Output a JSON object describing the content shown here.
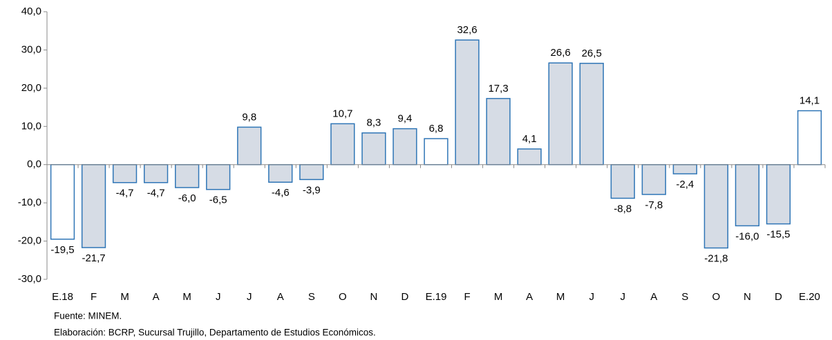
{
  "chart_data": {
    "type": "bar",
    "categories": [
      "E.18",
      "F",
      "M",
      "A",
      "M",
      "J",
      "J",
      "A",
      "S",
      "O",
      "N",
      "D",
      "E.19",
      "F",
      "M",
      "A",
      "M",
      "J",
      "J",
      "A",
      "S",
      "O",
      "N",
      "D",
      "E.20"
    ],
    "values": [
      -19.5,
      -21.7,
      -4.7,
      -4.7,
      -6.0,
      -6.5,
      9.8,
      -4.6,
      -3.9,
      10.7,
      8.3,
      9.4,
      6.8,
      32.6,
      17.3,
      4.1,
      26.6,
      26.5,
      -8.8,
      -7.8,
      -2.4,
      -21.8,
      -16.0,
      -15.5,
      14.1
    ],
    "value_labels": [
      "-19,5",
      "-21,7",
      "-4,7",
      "-4,7",
      "-6,0",
      "-6,5",
      "9,8",
      "-4,6",
      "-3,9",
      "10,7",
      "8,3",
      "9,4",
      "6,8",
      "32,6",
      "17,3",
      "4,1",
      "26,6",
      "26,5",
      "-8,8",
      "-7,8",
      "-2,4",
      "-21,8",
      "-16,0",
      "-15,5",
      "14,1"
    ],
    "colors": [
      "#ffffff",
      "#d6dce5",
      "#d6dce5",
      "#d6dce5",
      "#d6dce5",
      "#d6dce5",
      "#d6dce5",
      "#d6dce5",
      "#d6dce5",
      "#d6dce5",
      "#d6dce5",
      "#d6dce5",
      "#ffffff",
      "#d6dce5",
      "#d6dce5",
      "#d6dce5",
      "#d6dce5",
      "#d6dce5",
      "#d6dce5",
      "#d6dce5",
      "#d6dce5",
      "#d6dce5",
      "#d6dce5",
      "#d6dce5",
      "#ffffff"
    ],
    "edge_color": "#2e75b6",
    "ylim": [
      -30,
      40
    ],
    "yticks": [
      {
        "value": -30,
        "label": "-30,0"
      },
      {
        "value": -20,
        "label": "-20,0"
      },
      {
        "value": -10,
        "label": "-10,0"
      },
      {
        "value": 0,
        "label": "0,0"
      },
      {
        "value": 10,
        "label": "10,0"
      },
      {
        "value": 20,
        "label": "20,0"
      },
      {
        "value": 30,
        "label": "30,0"
      },
      {
        "value": 40,
        "label": "40,0"
      }
    ],
    "grid": false,
    "source": "Fuente: MINEM.",
    "credit": "Elaboración: BCRP, Sucursal Trujillo, Departamento de Estudios Económicos."
  }
}
